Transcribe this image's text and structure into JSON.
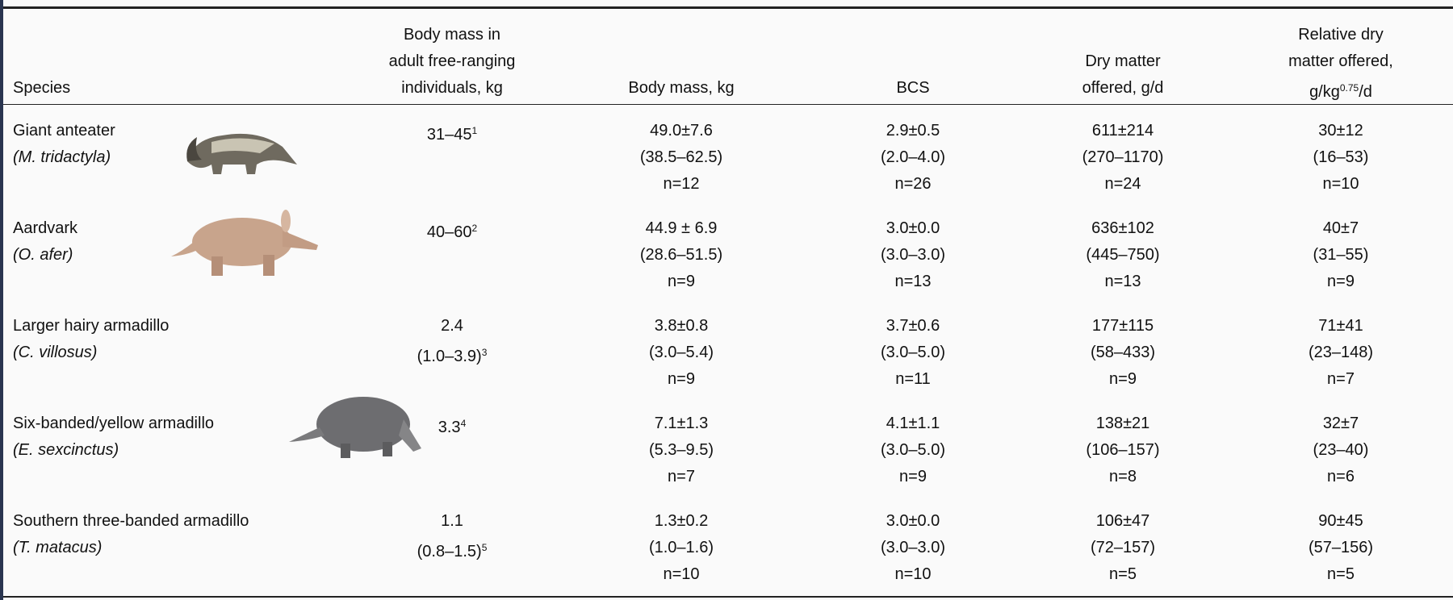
{
  "table": {
    "header": [
      {
        "lines": [
          "Species"
        ]
      },
      {
        "lines": [
          "Body mass in",
          "adult free-ranging",
          "individuals, kg"
        ]
      },
      {
        "lines": [
          "Body mass, kg"
        ]
      },
      {
        "lines": [
          "BCS"
        ]
      },
      {
        "lines": [
          "Dry matter",
          "offered, g/d"
        ]
      },
      {
        "lines": [
          "Relative dry",
          "matter offered,",
          "g/kg"
        ],
        "sup": "0.75",
        "after": "/d"
      }
    ],
    "rows": [
      {
        "species": "Giant anteater",
        "latin": "(M. tridactyla)",
        "free_ranging": [
          {
            "text": "31–45",
            "sup": "1"
          }
        ],
        "body_mass": [
          "49.0±7.6",
          "(38.5–62.5)",
          "n=12"
        ],
        "bcs": [
          "2.9±0.5",
          "(2.0–4.0)",
          "n=26"
        ],
        "dry_matter": [
          "611±214",
          "(270–1170)",
          "n=24"
        ],
        "relative_dry": [
          "30±12",
          "(16–53)",
          "n=10"
        ]
      },
      {
        "species": "Aardvark",
        "latin": "(O. afer)",
        "free_ranging": [
          {
            "text": "40–60",
            "sup": "2"
          }
        ],
        "body_mass": [
          "44.9 ± 6.9",
          "(28.6–51.5)",
          "n=9"
        ],
        "bcs": [
          "3.0±0.0",
          "(3.0–3.0)",
          "n=13"
        ],
        "dry_matter": [
          "636±102",
          "(445–750)",
          "n=13"
        ],
        "relative_dry": [
          "40±7",
          "(31–55)",
          "n=9"
        ]
      },
      {
        "species": "Larger hairy armadillo",
        "latin": "(C. villosus)",
        "free_ranging": [
          {
            "text": "2.4"
          },
          {
            "text": "(1.0–3.9)",
            "sup": "3"
          }
        ],
        "body_mass": [
          "3.8±0.8",
          "(3.0–5.4)",
          "n=9"
        ],
        "bcs": [
          "3.7±0.6",
          "(3.0–5.0)",
          "n=11"
        ],
        "dry_matter": [
          "177±115",
          "(58–433)",
          "n=9"
        ],
        "relative_dry": [
          "71±41",
          "(23–148)",
          "n=7"
        ]
      },
      {
        "species": "Six-banded/yellow armadillo",
        "latin": "(E. sexcinctus)",
        "free_ranging": [
          {
            "text": "3.3",
            "sup": "4"
          }
        ],
        "body_mass": [
          "7.1±1.3",
          "(5.3–9.5)",
          "n=7"
        ],
        "bcs": [
          "4.1±1.1",
          "(3.0–5.0)",
          "n=9"
        ],
        "dry_matter": [
          "138±21",
          "(106–157)",
          "n=8"
        ],
        "relative_dry": [
          "32±7",
          "(23–40)",
          "n=6"
        ]
      },
      {
        "species": "Southern three-banded armadillo",
        "latin": "(T. matacus)",
        "free_ranging": [
          {
            "text": "1.1"
          },
          {
            "text": "(0.8–1.5)",
            "sup": "5"
          }
        ],
        "body_mass": [
          "1.3±0.2",
          "(1.0–1.6)",
          "n=10"
        ],
        "bcs": [
          "3.0±0.0",
          "(3.0–3.0)",
          "n=10"
        ],
        "dry_matter": [
          "106±47",
          "(72–157)",
          "n=5"
        ],
        "relative_dry": [
          "90±45",
          "(57–156)",
          "n=5"
        ]
      }
    ]
  }
}
